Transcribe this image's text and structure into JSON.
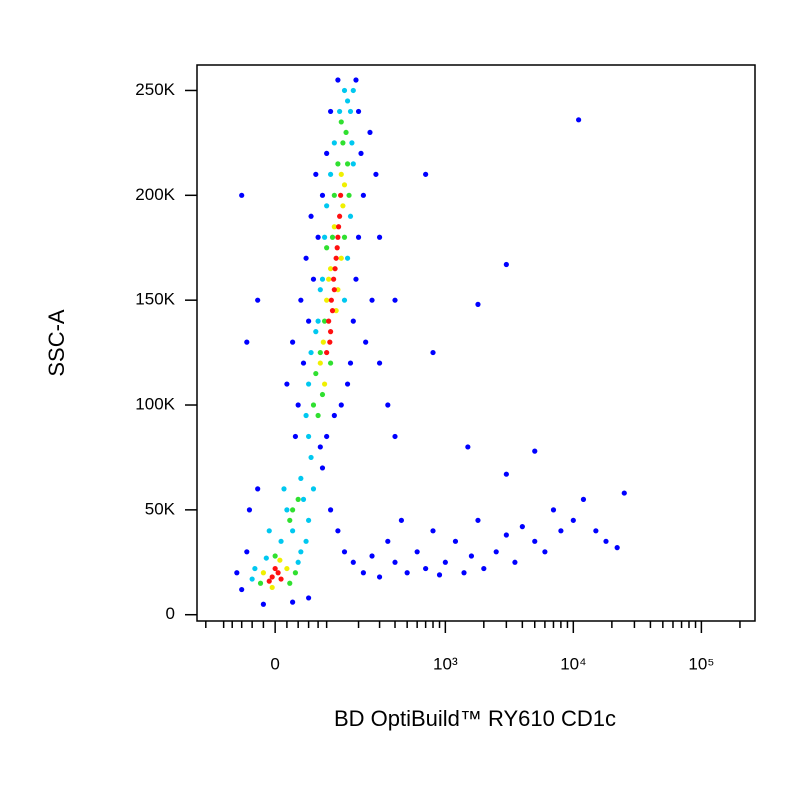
{
  "chart_data": {
    "type": "scatter",
    "xlabel": "BD OptiBuild™ RY610 CD1c",
    "ylabel": "SSC-A",
    "xscale": "biexponential",
    "xlim": [
      -180,
      262144
    ],
    "ylim": [
      -3000,
      262144
    ],
    "xticks": [
      0,
      {
        "value": 1000,
        "label": "10³"
      },
      {
        "value": 10000,
        "label": "10⁴"
      },
      {
        "value": 100000,
        "label": "10⁵"
      }
    ],
    "xminor": [
      -150,
      -100,
      -80,
      -60,
      -40,
      -20,
      20,
      40,
      60,
      80,
      100,
      200,
      300,
      400,
      500,
      600,
      700,
      800,
      900,
      2000,
      3000,
      4000,
      5000,
      6000,
      7000,
      8000,
      9000,
      20000,
      30000,
      40000,
      50000,
      60000,
      70000,
      80000,
      90000,
      200000
    ],
    "yticks": [
      0,
      {
        "value": 50000,
        "label": "50K"
      },
      {
        "value": 100000,
        "label": "100K"
      },
      {
        "value": 150000,
        "label": "150K"
      },
      {
        "value": 200000,
        "label": "200K"
      },
      {
        "value": 250000,
        "label": "250K"
      }
    ],
    "series": [
      {
        "color": "#0000ff",
        "x": [
          40,
          35,
          50,
          60,
          70,
          80,
          90,
          100,
          110,
          130,
          190,
          200,
          210,
          220,
          200,
          190,
          180,
          170,
          160,
          140,
          120,
          100,
          85,
          250,
          280,
          300,
          260,
          230,
          300,
          45,
          30,
          20,
          55,
          65,
          75,
          -60,
          -50,
          -30,
          350,
          400,
          -70,
          -60,
          -50,
          -45,
          -30,
          90,
          110,
          130,
          150,
          180,
          220,
          260,
          300,
          350,
          400,
          450,
          500,
          600,
          700,
          800,
          900,
          1000,
          1200,
          1400,
          1600,
          1800,
          2000,
          2500,
          3000,
          3500,
          4000,
          5000,
          6000,
          7000,
          8000,
          10000,
          12000,
          15000,
          18000,
          22000,
          25000,
          -20,
          30,
          60,
          1500,
          3000,
          5000,
          11000,
          1800,
          3000,
          800,
          400,
          700
        ],
        "values": [
          100000,
          85000,
          120000,
          140000,
          160000,
          180000,
          200000,
          220000,
          240000,
          255000,
          255000,
          240000,
          220000,
          200000,
          180000,
          160000,
          140000,
          120000,
          110000,
          100000,
          95000,
          85000,
          80000,
          230000,
          210000,
          180000,
          150000,
          130000,
          120000,
          150000,
          130000,
          110000,
          170000,
          190000,
          210000,
          200000,
          130000,
          150000,
          100000,
          150000,
          20000,
          12000,
          30000,
          50000,
          60000,
          70000,
          50000,
          40000,
          30000,
          25000,
          20000,
          28000,
          18000,
          35000,
          25000,
          45000,
          20000,
          30000,
          22000,
          40000,
          19000,
          25000,
          35000,
          20000,
          28000,
          45000,
          22000,
          30000,
          38000,
          25000,
          42000,
          35000,
          30000,
          50000,
          40000,
          45000,
          55000,
          40000,
          35000,
          32000,
          58000,
          5000,
          6000,
          8000,
          80000,
          67000,
          78000,
          236000,
          148000,
          167000,
          125000,
          85000,
          210000
        ]
      },
      {
        "color": "#00c8f0",
        "x": [
          55,
          60,
          65,
          45,
          50,
          20,
          60,
          30,
          15,
          70,
          170,
          180,
          150,
          160,
          135,
          175,
          80,
          85,
          95,
          100,
          120,
          180,
          170,
          160,
          150,
          60,
          65,
          75,
          -35,
          40,
          -15,
          -40,
          45,
          10,
          -10,
          55,
          90,
          110
        ],
        "values": [
          95000,
          85000,
          75000,
          65000,
          55000,
          50000,
          45000,
          40000,
          60000,
          60000,
          240000,
          250000,
          250000,
          245000,
          240000,
          225000,
          140000,
          155000,
          180000,
          195000,
          225000,
          215000,
          190000,
          170000,
          150000,
          110000,
          125000,
          135000,
          22000,
          25000,
          27000,
          17000,
          30000,
          35000,
          40000,
          35000,
          160000,
          210000
        ]
      },
      {
        "color": "#30e030",
        "x": [
          70,
          80,
          90,
          150,
          160,
          155,
          120,
          130,
          75,
          110,
          165,
          95,
          145,
          100,
          115,
          85,
          140,
          30,
          40,
          25,
          -25,
          25,
          0,
          35
        ],
        "values": [
          100000,
          95000,
          105000,
          180000,
          215000,
          230000,
          200000,
          215000,
          115000,
          120000,
          200000,
          140000,
          225000,
          175000,
          180000,
          125000,
          235000,
          50000,
          55000,
          45000,
          15000,
          15000,
          28000,
          20000
        ]
      },
      {
        "color": "#f0f000",
        "x": [
          85,
          95,
          130,
          140,
          100,
          110,
          145,
          120,
          140,
          150,
          92,
          125,
          105,
          -20,
          20,
          -5,
          8
        ],
        "values": [
          120000,
          110000,
          155000,
          170000,
          150000,
          165000,
          195000,
          185000,
          210000,
          205000,
          130000,
          145000,
          160000,
          20000,
          22000,
          13000,
          26000
        ]
      },
      {
        "color": "#ff1010",
        "x": [
          100,
          105,
          112,
          118,
          125,
          130,
          135,
          110,
          120,
          128,
          115,
          108,
          122,
          132,
          138,
          -5,
          5,
          0,
          -10,
          10
        ],
        "values": [
          125000,
          140000,
          150000,
          160000,
          170000,
          180000,
          190000,
          135000,
          155000,
          175000,
          145000,
          130000,
          165000,
          185000,
          200000,
          18000,
          20000,
          22000,
          16000,
          17000
        ]
      }
    ]
  }
}
